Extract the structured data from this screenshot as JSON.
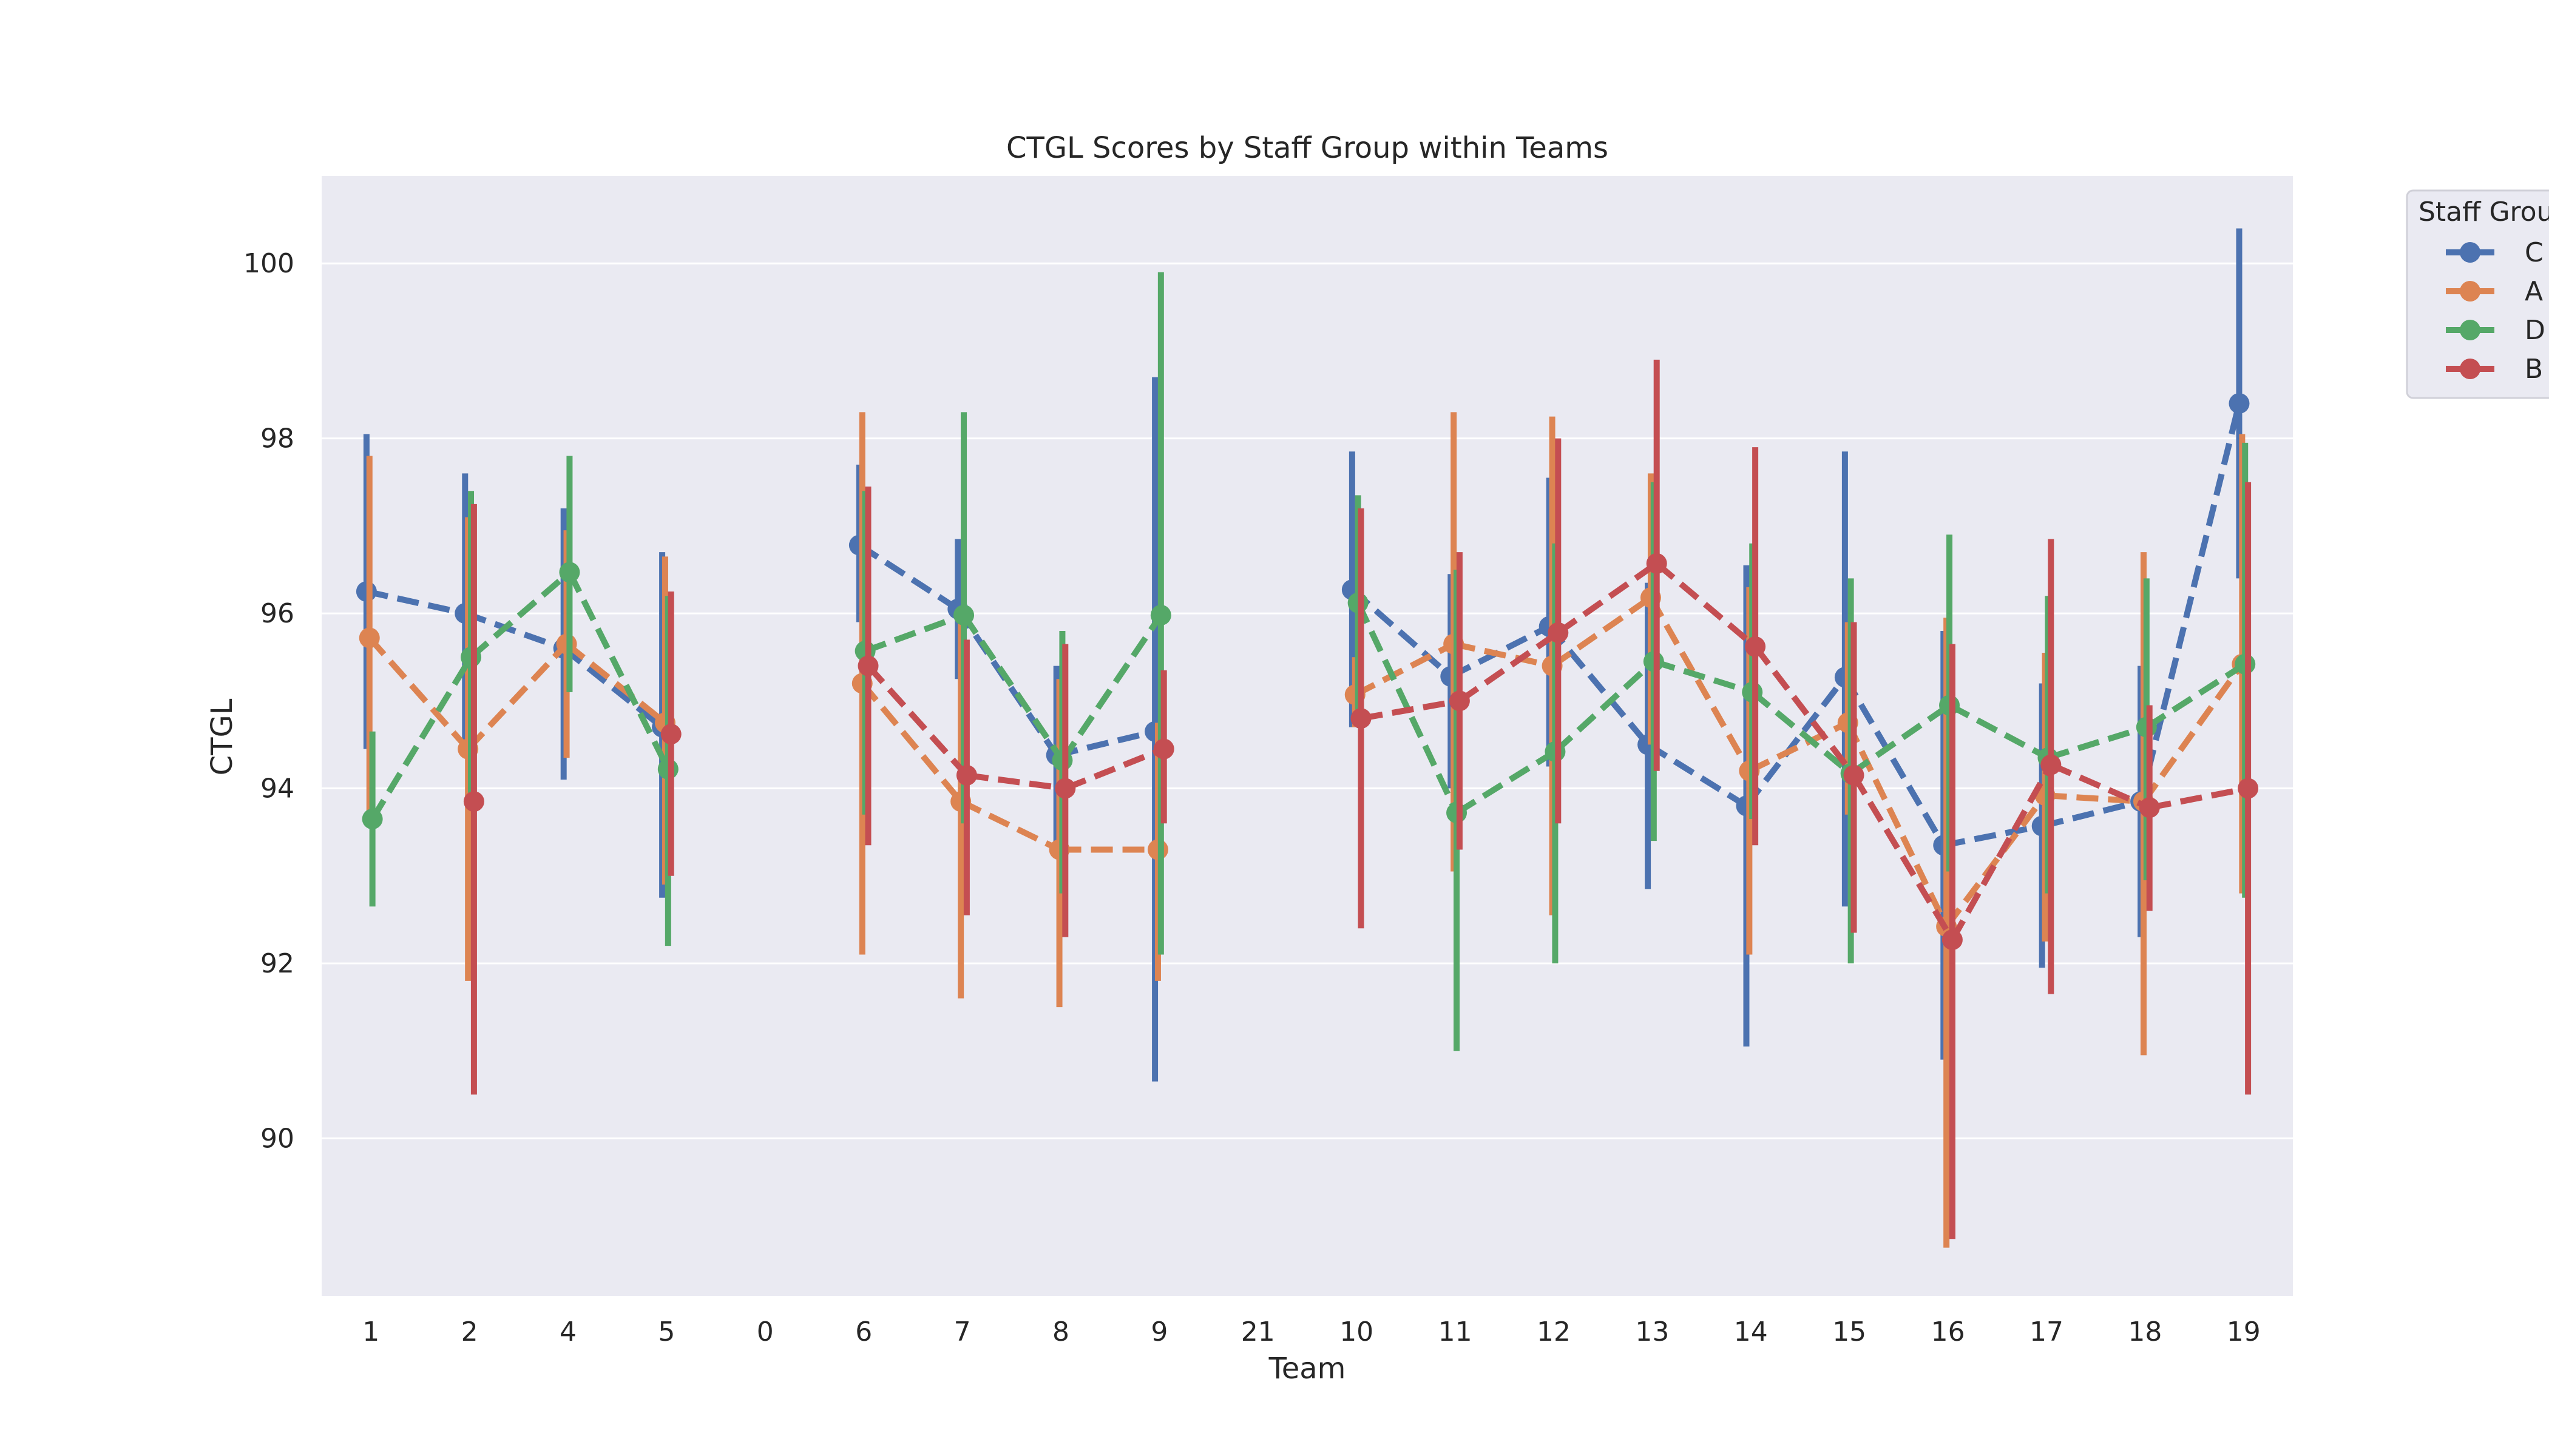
{
  "chart_data": {
    "type": "line",
    "title": "CTGL Scores by Staff Group within Teams",
    "xlabel": "Team",
    "ylabel": "CTGL",
    "categories": [
      "1",
      "2",
      "4",
      "5",
      "0",
      "6",
      "7",
      "8",
      "9",
      "21",
      "10",
      "11",
      "12",
      "13",
      "14",
      "15",
      "16",
      "17",
      "18",
      "19"
    ],
    "yticks": [
      90,
      92,
      94,
      96,
      98,
      100
    ],
    "ylim": [
      88.2,
      101.0
    ],
    "grid": true,
    "legend": {
      "title": "Staff Group",
      "placement": "outside-right-top"
    },
    "dodge_offsets": {
      "C": -0.045,
      "A": -0.015,
      "D": 0.015,
      "B": 0.045
    },
    "series": [
      {
        "name": "C",
        "color": "#4c72b0",
        "values": [
          96.25,
          96.0,
          95.6,
          94.7,
          null,
          96.78,
          96.05,
          94.38,
          94.65,
          null,
          96.27,
          95.28,
          95.85,
          94.5,
          93.8,
          95.27,
          93.35,
          93.57,
          93.85,
          98.4
        ],
        "ci_low": [
          94.45,
          94.5,
          94.1,
          92.75,
          null,
          95.9,
          95.25,
          93.3,
          90.65,
          null,
          94.7,
          94.0,
          94.25,
          92.85,
          91.05,
          92.65,
          90.9,
          91.95,
          92.3,
          96.4
        ],
        "ci_high": [
          98.05,
          97.6,
          97.2,
          96.7,
          null,
          97.7,
          96.85,
          95.4,
          98.7,
          null,
          97.85,
          96.45,
          97.55,
          96.35,
          96.55,
          97.85,
          95.8,
          95.2,
          95.4,
          100.4
        ]
      },
      {
        "name": "A",
        "color": "#dd8452",
        "values": [
          95.72,
          94.45,
          95.65,
          94.75,
          null,
          95.2,
          93.85,
          93.3,
          93.3,
          null,
          95.07,
          95.65,
          95.4,
          96.18,
          94.2,
          94.75,
          92.42,
          93.92,
          93.85,
          95.42
        ],
        "ci_low": [
          93.7,
          91.8,
          94.35,
          92.9,
          null,
          92.1,
          91.6,
          91.5,
          91.8,
          null,
          94.7,
          93.05,
          92.55,
          94.5,
          92.1,
          93.7,
          88.75,
          92.25,
          90.95,
          92.8
        ],
        "ci_high": [
          97.8,
          97.1,
          96.95,
          96.65,
          null,
          98.3,
          96.0,
          95.25,
          94.75,
          null,
          95.5,
          98.3,
          98.25,
          97.6,
          96.3,
          95.9,
          95.95,
          95.55,
          96.7,
          98.05
        ]
      },
      {
        "name": "D",
        "color": "#55a868",
        "values": [
          93.65,
          95.5,
          96.47,
          94.22,
          null,
          95.57,
          95.98,
          94.32,
          95.98,
          null,
          96.12,
          93.72,
          94.42,
          95.45,
          95.1,
          94.17,
          94.95,
          94.35,
          94.7,
          95.42
        ],
        "ci_low": [
          92.65,
          93.95,
          95.1,
          92.2,
          null,
          93.7,
          93.6,
          92.8,
          92.1,
          null,
          94.9,
          91.0,
          92.0,
          93.4,
          93.65,
          92.0,
          93.05,
          92.8,
          92.95,
          92.75
        ],
        "ci_high": [
          94.65,
          97.4,
          97.8,
          96.2,
          null,
          97.4,
          98.3,
          95.8,
          99.9,
          null,
          97.35,
          96.5,
          96.8,
          97.5,
          96.8,
          96.4,
          96.9,
          96.2,
          96.4,
          97.95
        ]
      },
      {
        "name": "B",
        "color": "#c44e52",
        "values": [
          null,
          93.85,
          null,
          94.62,
          null,
          95.4,
          94.15,
          94.0,
          94.45,
          null,
          94.8,
          95.0,
          95.78,
          96.57,
          95.62,
          94.15,
          92.27,
          94.27,
          93.78,
          94.0
        ],
        "ci_low": [
          null,
          90.5,
          null,
          93.0,
          null,
          93.35,
          92.55,
          92.3,
          93.6,
          null,
          92.4,
          93.3,
          93.6,
          94.2,
          93.35,
          92.35,
          88.85,
          91.65,
          92.6,
          90.5
        ],
        "ci_high": [
          null,
          97.25,
          null,
          96.25,
          null,
          97.45,
          95.7,
          95.65,
          95.35,
          null,
          97.2,
          96.7,
          98.0,
          98.9,
          97.9,
          95.9,
          95.65,
          96.85,
          94.95,
          97.5
        ]
      }
    ]
  }
}
